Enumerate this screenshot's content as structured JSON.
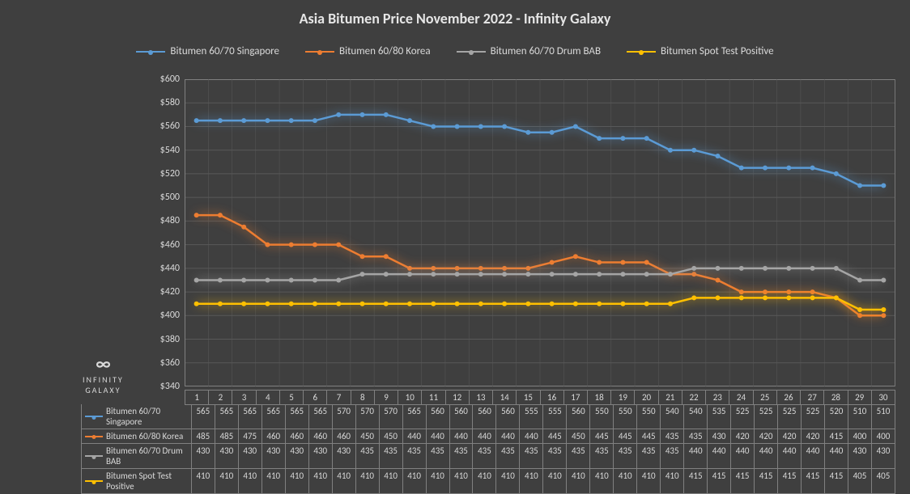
{
  "title_text": "Asia Bitumen Price November 2022 - Infinity Galaxy",
  "title_fontsize": 18,
  "background_color": "#3f3f3f",
  "grid_color": "#595959",
  "border_color": "#808080",
  "text_color": "#d9d9d9",
  "logo": {
    "symbol": "∞",
    "line1": "INFINITY",
    "line2": "GALAXY"
  },
  "x_categories": [
    "1",
    "2",
    "3",
    "4",
    "5",
    "6",
    "7",
    "8",
    "9",
    "10",
    "11",
    "12",
    "13",
    "14",
    "15",
    "16",
    "17",
    "18",
    "19",
    "20",
    "21",
    "22",
    "23",
    "24",
    "25",
    "26",
    "27",
    "28",
    "29",
    "30"
  ],
  "y_axis": {
    "min": 340,
    "max": 600,
    "step": 20,
    "prefix": "$"
  },
  "line_width": 2.5,
  "marker_radius": 3,
  "glow": true,
  "series": [
    {
      "id": "singapore",
      "label": "Bitumen 60/70 Singapore",
      "color": "#5b9bd5",
      "values": [
        565,
        565,
        565,
        565,
        565,
        565,
        570,
        570,
        570,
        565,
        560,
        560,
        560,
        560,
        555,
        555,
        560,
        550,
        550,
        550,
        540,
        540,
        535,
        525,
        525,
        525,
        525,
        520,
        510,
        510
      ]
    },
    {
      "id": "korea",
      "label": "Bitumen 60/80 Korea",
      "color": "#ed7d31",
      "values": [
        485,
        485,
        475,
        460,
        460,
        460,
        460,
        450,
        450,
        440,
        440,
        440,
        440,
        440,
        440,
        445,
        450,
        445,
        445,
        445,
        435,
        435,
        430,
        420,
        420,
        420,
        420,
        415,
        400,
        400
      ]
    },
    {
      "id": "drum",
      "label": "Bitumen 60/70 Drum BAB",
      "color": "#a5a5a5",
      "values": [
        430,
        430,
        430,
        430,
        430,
        430,
        430,
        435,
        435,
        435,
        435,
        435,
        435,
        435,
        435,
        435,
        435,
        435,
        435,
        435,
        435,
        440,
        440,
        440,
        440,
        440,
        440,
        440,
        430,
        430
      ]
    },
    {
      "id": "spot",
      "label": "Bitumen Spot Test Positive",
      "color": "#ffc000",
      "values": [
        410,
        410,
        410,
        410,
        410,
        410,
        410,
        410,
        410,
        410,
        410,
        410,
        410,
        410,
        410,
        410,
        410,
        410,
        410,
        410,
        410,
        415,
        415,
        415,
        415,
        415,
        415,
        415,
        405,
        405
      ]
    }
  ]
}
